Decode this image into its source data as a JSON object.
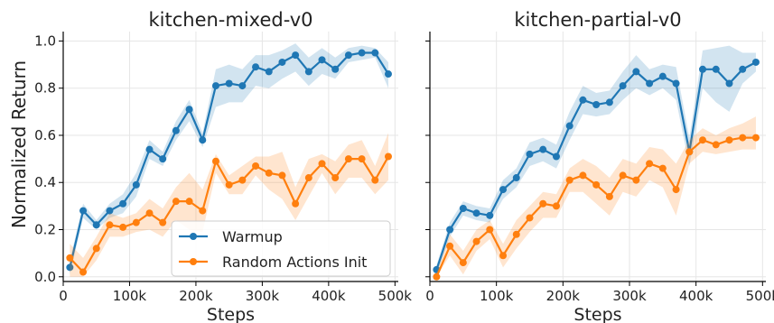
{
  "figure": {
    "ylabel": "Normalized Return"
  },
  "chart_data": [
    {
      "type": "line",
      "title": "kitchen-mixed-v0",
      "xlabel": "Steps",
      "ylabel": "Normalized Return",
      "xlim": [
        0,
        505000
      ],
      "ylim": [
        -0.02,
        1.04
      ],
      "xticks": [
        0,
        100000,
        200000,
        300000,
        400000,
        500000
      ],
      "xtick_labels": [
        "0",
        "100k",
        "200k",
        "300k",
        "400k",
        "500k"
      ],
      "yticks": [
        0.0,
        0.2,
        0.4,
        0.6,
        0.8,
        1.0
      ],
      "ytick_labels": [
        "0.0",
        "0.2",
        "0.4",
        "0.6",
        "0.8",
        "1.0"
      ],
      "grid": true,
      "legend": "lower-center",
      "x": [
        10000,
        30000,
        50000,
        70000,
        90000,
        110000,
        130000,
        150000,
        170000,
        190000,
        210000,
        230000,
        250000,
        270000,
        290000,
        310000,
        330000,
        350000,
        370000,
        390000,
        410000,
        430000,
        450000,
        470000,
        490000
      ],
      "series": [
        {
          "name": "Warmup",
          "color": "#1f77b4",
          "values": [
            0.04,
            0.28,
            0.22,
            0.28,
            0.31,
            0.39,
            0.54,
            0.5,
            0.62,
            0.71,
            0.58,
            0.81,
            0.82,
            0.81,
            0.89,
            0.87,
            0.91,
            0.94,
            0.87,
            0.92,
            0.88,
            0.94,
            0.95,
            0.95,
            0.86
          ],
          "lower": [
            0.01,
            0.25,
            0.2,
            0.25,
            0.27,
            0.34,
            0.5,
            0.47,
            0.58,
            0.66,
            0.55,
            0.72,
            0.74,
            0.74,
            0.81,
            0.8,
            0.84,
            0.87,
            0.81,
            0.86,
            0.84,
            0.91,
            0.92,
            0.93,
            0.8
          ],
          "upper": [
            0.07,
            0.31,
            0.24,
            0.31,
            0.35,
            0.44,
            0.58,
            0.53,
            0.66,
            0.75,
            0.61,
            0.88,
            0.9,
            0.88,
            0.94,
            0.94,
            0.96,
            0.99,
            0.93,
            0.97,
            0.93,
            0.97,
            0.98,
            0.97,
            0.91
          ]
        },
        {
          "name": "Random Actions Init",
          "color": "#ff7f0e",
          "values": [
            0.08,
            0.02,
            0.12,
            0.22,
            0.21,
            0.23,
            0.27,
            0.23,
            0.32,
            0.32,
            0.28,
            0.49,
            0.39,
            0.41,
            0.47,
            0.44,
            0.43,
            0.31,
            0.42,
            0.48,
            0.42,
            0.5,
            0.5,
            0.41,
            0.51
          ],
          "lower": [
            0.0,
            0.0,
            0.07,
            0.17,
            0.17,
            0.19,
            0.2,
            0.17,
            0.24,
            0.2,
            0.19,
            0.44,
            0.35,
            0.35,
            0.43,
            0.37,
            0.33,
            0.24,
            0.34,
            0.44,
            0.35,
            0.42,
            0.42,
            0.35,
            0.41
          ],
          "upper": [
            0.14,
            0.08,
            0.17,
            0.27,
            0.25,
            0.27,
            0.33,
            0.29,
            0.38,
            0.44,
            0.37,
            0.52,
            0.43,
            0.47,
            0.51,
            0.51,
            0.53,
            0.38,
            0.5,
            0.52,
            0.49,
            0.56,
            0.58,
            0.47,
            0.61
          ]
        }
      ]
    },
    {
      "type": "line",
      "title": "kitchen-partial-v0",
      "xlabel": "Steps",
      "ylabel": "",
      "xlim": [
        0,
        505000
      ],
      "ylim": [
        -0.02,
        1.04
      ],
      "xticks": [
        0,
        100000,
        200000,
        300000,
        400000,
        500000
      ],
      "xtick_labels": [
        "0",
        "100k",
        "200k",
        "300k",
        "400k",
        "500k"
      ],
      "yticks": [
        0.0,
        0.2,
        0.4,
        0.6,
        0.8,
        1.0
      ],
      "ytick_labels": [
        "",
        "",
        "",
        "",
        "",
        ""
      ],
      "grid": true,
      "x": [
        10000,
        30000,
        50000,
        70000,
        90000,
        110000,
        130000,
        150000,
        170000,
        190000,
        210000,
        230000,
        250000,
        270000,
        290000,
        310000,
        330000,
        350000,
        370000,
        390000,
        410000,
        430000,
        450000,
        470000,
        490000
      ],
      "series": [
        {
          "name": "Warmup",
          "color": "#1f77b4",
          "values": [
            0.03,
            0.2,
            0.29,
            0.27,
            0.26,
            0.37,
            0.42,
            0.52,
            0.54,
            0.51,
            0.64,
            0.75,
            0.73,
            0.74,
            0.81,
            0.87,
            0.82,
            0.85,
            0.82,
            0.53,
            0.88,
            0.88,
            0.82,
            0.88,
            0.91
          ],
          "lower": [
            0.01,
            0.17,
            0.26,
            0.24,
            0.23,
            0.33,
            0.38,
            0.47,
            0.49,
            0.46,
            0.58,
            0.69,
            0.68,
            0.69,
            0.75,
            0.8,
            0.77,
            0.8,
            0.75,
            0.47,
            0.8,
            0.74,
            0.7,
            0.82,
            0.87
          ],
          "upper": [
            0.05,
            0.23,
            0.32,
            0.3,
            0.29,
            0.41,
            0.46,
            0.57,
            0.59,
            0.56,
            0.7,
            0.81,
            0.78,
            0.79,
            0.87,
            0.94,
            0.88,
            0.9,
            0.89,
            0.59,
            0.96,
            0.97,
            0.98,
            0.95,
            0.95
          ]
        },
        {
          "name": "Random Actions Init",
          "color": "#ff7f0e",
          "values": [
            0.0,
            0.13,
            0.06,
            0.15,
            0.2,
            0.09,
            0.18,
            0.25,
            0.31,
            0.3,
            0.41,
            0.43,
            0.39,
            0.34,
            0.43,
            0.41,
            0.48,
            0.46,
            0.37,
            0.53,
            0.58,
            0.56,
            0.58,
            0.59,
            0.59
          ],
          "lower": [
            0.0,
            0.09,
            0.01,
            0.11,
            0.16,
            0.04,
            0.12,
            0.19,
            0.25,
            0.25,
            0.36,
            0.36,
            0.31,
            0.26,
            0.36,
            0.34,
            0.41,
            0.38,
            0.26,
            0.48,
            0.53,
            0.52,
            0.53,
            0.54,
            0.54
          ],
          "upper": [
            0.02,
            0.18,
            0.11,
            0.2,
            0.24,
            0.14,
            0.24,
            0.3,
            0.36,
            0.35,
            0.46,
            0.5,
            0.47,
            0.42,
            0.5,
            0.48,
            0.55,
            0.54,
            0.48,
            0.58,
            0.63,
            0.6,
            0.63,
            0.65,
            0.68
          ]
        }
      ]
    }
  ]
}
